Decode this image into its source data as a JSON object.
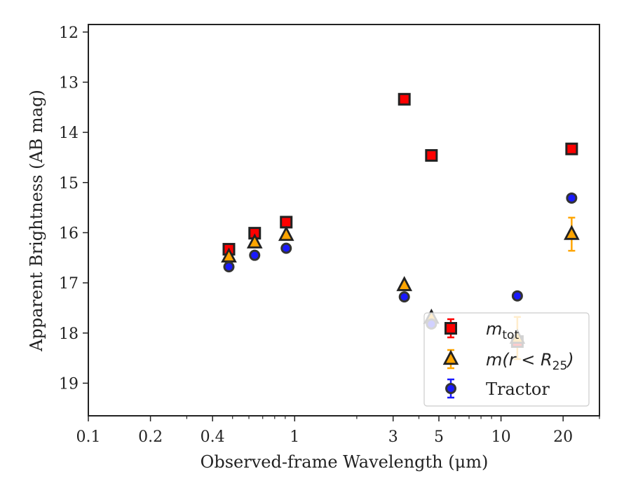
{
  "chart_data": {
    "type": "scatter",
    "xlabel": "Observed-frame Wavelength (μm)",
    "ylabel": "Apparent Brightness (AB mag)",
    "xscale": "log",
    "xlim": [
      0.1,
      30
    ],
    "ylim": [
      19.65,
      11.85
    ],
    "y_inverted": true,
    "xticks": [
      {
        "value": 0.1,
        "label": "0.1"
      },
      {
        "value": 0.2,
        "label": "0.2"
      },
      {
        "value": 0.4,
        "label": "0.4"
      },
      {
        "value": 1,
        "label": "1"
      },
      {
        "value": 3,
        "label": "3"
      },
      {
        "value": 5,
        "label": "5"
      },
      {
        "value": 10,
        "label": "10"
      },
      {
        "value": 20,
        "label": "20"
      }
    ],
    "x_minor_ticks": [
      0.3,
      0.5,
      0.6,
      0.7,
      0.8,
      0.9,
      2,
      4,
      6,
      7,
      8,
      9,
      30
    ],
    "yticks": [
      12,
      13,
      14,
      15,
      16,
      17,
      18,
      19
    ],
    "grid": false,
    "legend_position": "bottom-right",
    "series": [
      {
        "name": "m_tot",
        "legend_main": "m",
        "legend_sub": "tot",
        "marker": "square",
        "color": "#ff0000",
        "edge_color": "#222222",
        "error_color": "#ff0000",
        "points": [
          {
            "x": 0.48,
            "y": 16.33,
            "err": 0.03
          },
          {
            "x": 0.64,
            "y": 16.01,
            "err": 0.03
          },
          {
            "x": 0.91,
            "y": 15.79,
            "err": 0.03
          },
          {
            "x": 3.4,
            "y": 13.34,
            "err": 0.03
          },
          {
            "x": 4.6,
            "y": 14.46,
            "err": 0.03
          },
          {
            "x": 12.0,
            "y": 18.17,
            "err": 0.03
          },
          {
            "x": 22.0,
            "y": 14.33,
            "err": 0.03
          }
        ]
      },
      {
        "name": "m(r < R25)",
        "legend_main": "m(r < R",
        "legend_sub": "25",
        "legend_close": ")",
        "marker": "triangle",
        "color": "#ffa500",
        "edge_color": "#222222",
        "error_color": "#ffa500",
        "points": [
          {
            "x": 0.48,
            "y": 16.48,
            "err": 0.03
          },
          {
            "x": 0.64,
            "y": 16.2,
            "err": 0.03
          },
          {
            "x": 0.91,
            "y": 16.05,
            "err": 0.03
          },
          {
            "x": 3.4,
            "y": 17.05,
            "err": 0.03
          },
          {
            "x": 4.6,
            "y": 17.7,
            "err": 0.05
          },
          {
            "x": 12.0,
            "y": 18.1,
            "err": 0.42
          },
          {
            "x": 22.0,
            "y": 16.03,
            "err": 0.33
          }
        ]
      },
      {
        "name": "Tractor",
        "legend_main": "Tractor",
        "marker": "circle",
        "color": "#1a1aff",
        "edge_color": "#333333",
        "error_color": "#1a1aff",
        "points": [
          {
            "x": 0.48,
            "y": 16.68,
            "err": 0.05
          },
          {
            "x": 0.64,
            "y": 16.45,
            "err": 0.05
          },
          {
            "x": 0.91,
            "y": 16.31,
            "err": 0.05
          },
          {
            "x": 3.4,
            "y": 17.28,
            "err": 0.05
          },
          {
            "x": 4.6,
            "y": 17.82,
            "err": 0.05
          },
          {
            "x": 12.0,
            "y": 17.26,
            "err": 0.05
          },
          {
            "x": 22.0,
            "y": 15.31,
            "err": 0.07
          }
        ]
      }
    ]
  }
}
